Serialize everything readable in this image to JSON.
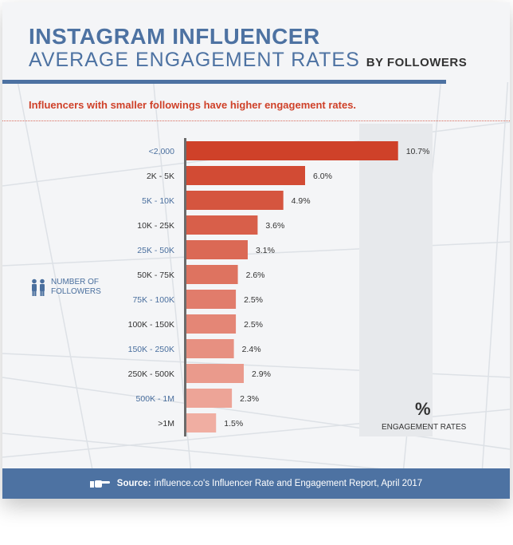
{
  "header": {
    "title_line1": "INSTAGRAM INFLUENCER",
    "title_line2": "AVERAGE ENGAGEMENT RATES",
    "title_suffix": "BY FOLLOWERS",
    "subtitle": "Influencers with smaller followings have higher engagement rates."
  },
  "legend": {
    "followers_line1": "NUMBER OF",
    "followers_line2": "FOLLOWERS",
    "percent_symbol": "%",
    "rates_label": "ENGAGEMENT RATES"
  },
  "footer": {
    "source_label": "Source:",
    "source_text": "influence.co's Influencer Rate and Engagement Report, April 2017"
  },
  "colors": {
    "accent": "#4d72a2",
    "title_red": "#cf4129",
    "bar_dark": "#cf4129",
    "bar_light": "#f0aea2"
  },
  "chart_data": {
    "type": "bar",
    "orientation": "horizontal",
    "categories": [
      "<2,000",
      "2K - 5K",
      "5K - 10K",
      "10K - 25K",
      "25K - 50K",
      "50K - 75K",
      "75K - 100K",
      "100K - 150K",
      "150K - 250K",
      "250K - 500K",
      "500K - 1M",
      ">1M"
    ],
    "values": [
      10.7,
      6.0,
      4.9,
      3.6,
      3.1,
      2.6,
      2.5,
      2.5,
      2.4,
      2.9,
      2.3,
      1.5
    ],
    "value_labels": [
      "10.7%",
      "6.0%",
      "4.9%",
      "3.6%",
      "3.1%",
      "2.6%",
      "2.5%",
      "2.5%",
      "2.4%",
      "2.9%",
      "2.3%",
      "1.5%"
    ],
    "xlim": [
      0,
      12
    ]
  }
}
